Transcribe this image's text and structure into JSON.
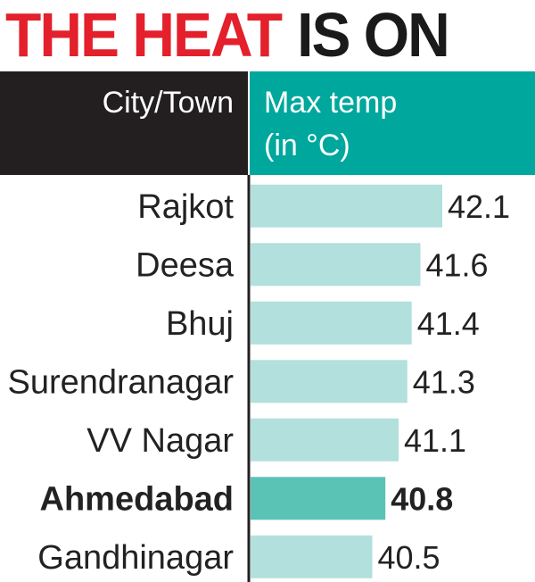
{
  "title": {
    "part1": "THE HEAT",
    "part2": "IS ON"
  },
  "chart_data": {
    "type": "bar",
    "orientation": "horizontal",
    "header_category": "City/Town",
    "header_value_line1": "Max temp",
    "header_value_line2": "(in °C)",
    "categories": [
      "Rajkot",
      "Deesa",
      "Bhuj",
      "Surendranagar",
      "VV Nagar",
      "Ahmedabad",
      "Gandhinagar"
    ],
    "values": [
      42.1,
      41.6,
      41.4,
      41.3,
      41.1,
      40.8,
      40.5
    ],
    "value_labels": [
      "42.1",
      "41.6",
      "41.4",
      "41.3",
      "41.1",
      "40.8",
      "40.5"
    ],
    "highlight": "Ahmedabad",
    "colors": {
      "header_left": "#231f20",
      "header_right": "#00a79d",
      "bar": "#b2e0dc",
      "bar_highlight": "#5bc2b6",
      "title_red": "#e3202b",
      "title_black": "#1a1a1a"
    }
  }
}
